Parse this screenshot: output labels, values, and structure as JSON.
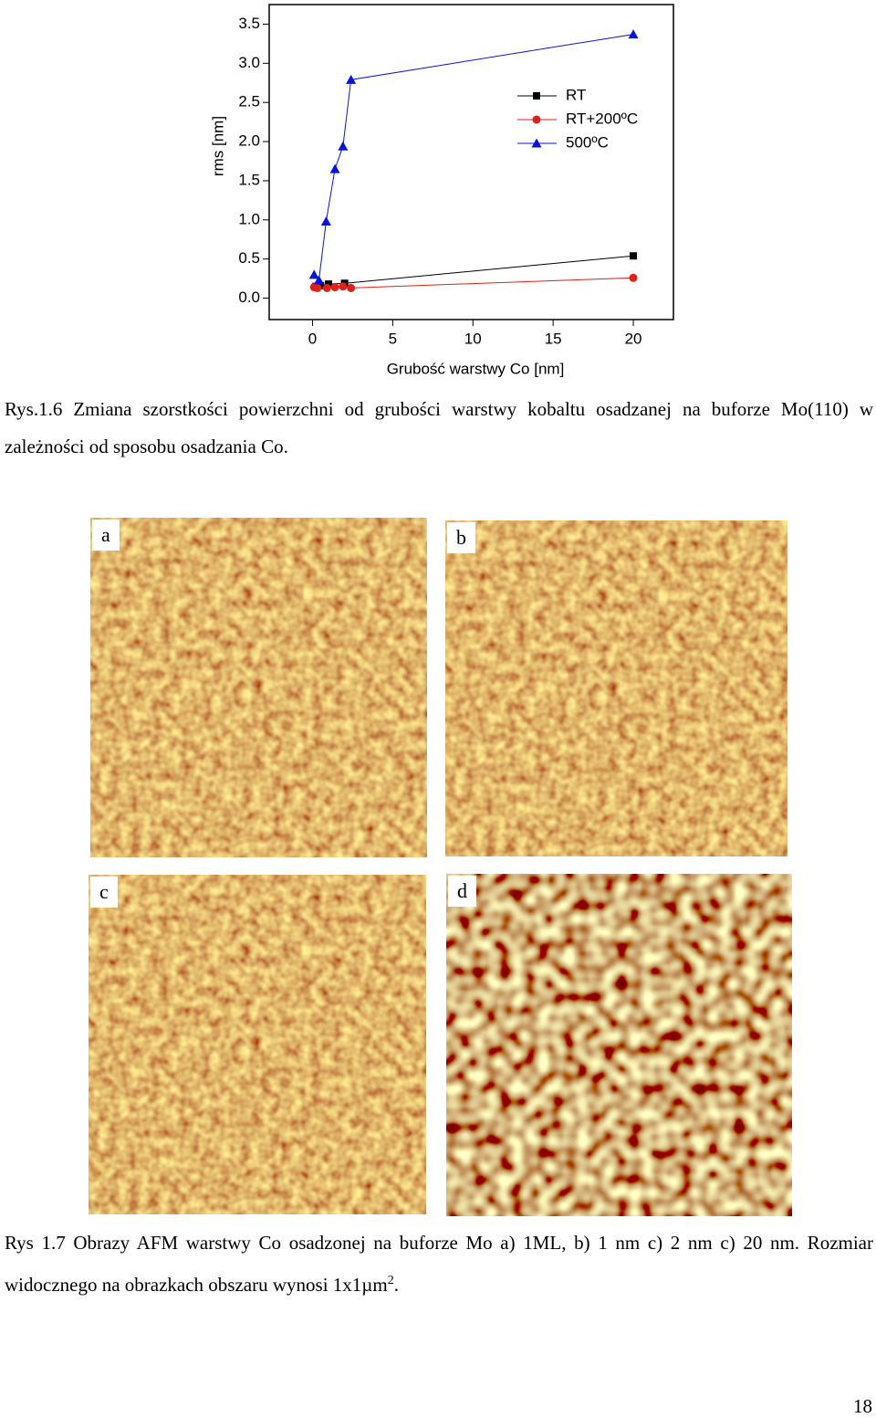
{
  "chart_data": {
    "type": "line",
    "y_label": "rms [nm]",
    "x_label": "Grubość warstwy Co [nm]",
    "xlim": [
      -2.7,
      22.5
    ],
    "xticks": [
      0,
      5,
      10,
      15,
      20
    ],
    "ylim": [
      -0.25,
      3.75
    ],
    "yticks": [
      {
        "value": 0,
        "label": "0.0"
      },
      0.5,
      {
        "value": 1,
        "label": "1.0"
      },
      1.5,
      {
        "value": 2,
        "label": "2.0"
      },
      2.5,
      {
        "value": 3,
        "label": "3.0"
      },
      3.5
    ],
    "legend": "upper right",
    "series": [
      {
        "name": "RT",
        "color": "#000000",
        "marker": "square",
        "x": [
          0.2,
          0.5,
          1,
          2,
          20
        ],
        "values": [
          0.15,
          0.16,
          0.18,
          0.19,
          0.54
        ]
      },
      {
        "name": "RT+200ºC",
        "color": "#e0201b",
        "marker": "circle",
        "x": [
          0.1,
          0.3,
          0.9,
          1.4,
          1.9,
          2.4,
          20
        ],
        "values": [
          0.14,
          0.13,
          0.13,
          0.14,
          0.15,
          0.13,
          0.26
        ]
      },
      {
        "name": "500ºC",
        "color": "#0a14d8",
        "marker": "triangle",
        "x": [
          0.1,
          0.4,
          0.85,
          1.4,
          1.9,
          2.4,
          20
        ],
        "values": [
          0.3,
          0.23,
          0.98,
          1.65,
          1.94,
          2.79,
          3.37
        ]
      }
    ]
  },
  "caption_1": "Rys.1.6 Zmiana szorstkości powierzchni od grubości warstwy kobaltu osadzanej na buforze Mo(110) w zależności od sposobu osadzania Co.",
  "images": [
    {
      "label": "a"
    },
    {
      "label": "b"
    },
    {
      "label": "c"
    },
    {
      "label": "d"
    }
  ],
  "caption_2": {
    "text": "Rys 1.7 Obrazy AFM warstwy Co osadzonej na buforze Mo a) 1ML, b) 1 nm c) 2 nm c) 20 nm. Rozmiar widocznego na obrazkach obszaru wynosi 1x1µm",
    "superscript": "2",
    "end": "."
  },
  "page_number": "18"
}
